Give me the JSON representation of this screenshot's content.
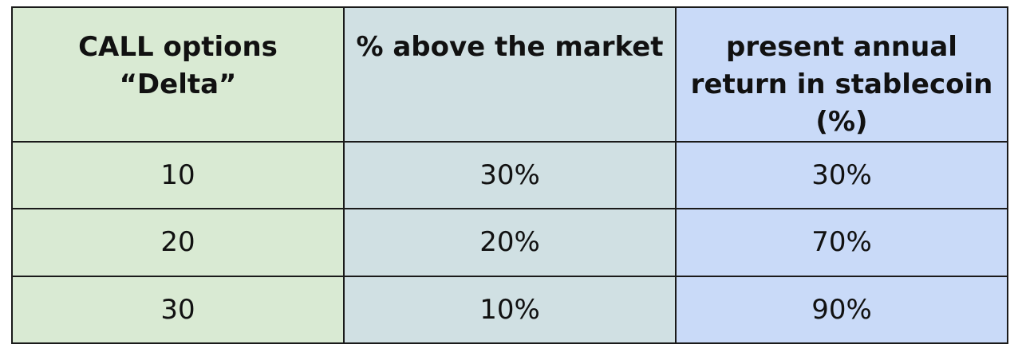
{
  "table": {
    "headers": [
      {
        "lines": [
          "CALL options",
          "“Delta”"
        ]
      },
      {
        "lines": [
          "% above the market"
        ]
      },
      {
        "lines": [
          "present annual",
          "return in stablecoin",
          "(%)"
        ]
      }
    ],
    "rows": [
      [
        "10",
        "30%",
        "30%"
      ],
      [
        "20",
        "20%",
        "70%"
      ],
      [
        "30",
        "10%",
        "90%"
      ]
    ],
    "colors": {
      "col1": "#d9ead3",
      "col2": "#d0e0e3",
      "col3": "#c9daf8",
      "border": "#1a1a1a"
    }
  }
}
